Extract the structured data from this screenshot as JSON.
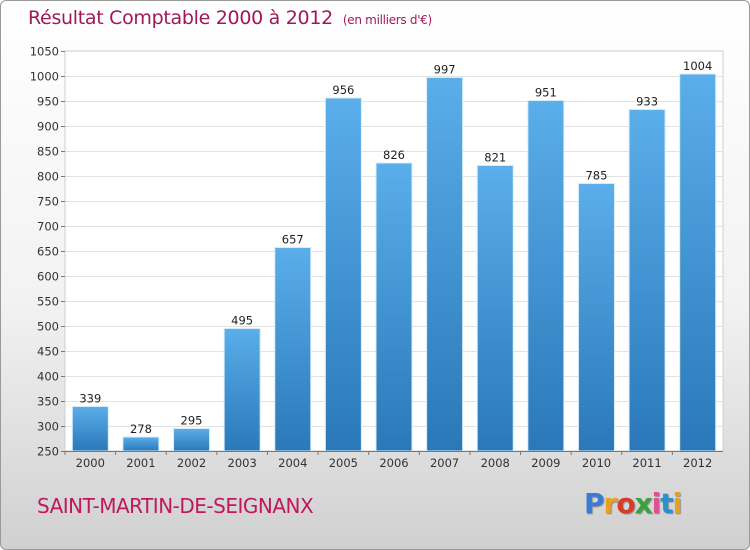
{
  "header": {
    "title": "Résultat Comptable 2000 à 2012",
    "unit": "(en milliers d'€)"
  },
  "footer": {
    "commune": "SAINT-MARTIN-DE-SEIGNANX",
    "logo_text": "Proxiti"
  },
  "colors": {
    "title": "#a0185a",
    "bar_top": "#5aaeea",
    "bar_bottom": "#2a78b8",
    "logo": [
      "#3a7bd5",
      "#e8a020",
      "#d83a2a",
      "#3aa040",
      "#e05090",
      "#2a90d0",
      "#e8a020"
    ]
  },
  "chart_data": {
    "type": "bar",
    "categories": [
      "2000",
      "2001",
      "2002",
      "2003",
      "2004",
      "2005",
      "2006",
      "2007",
      "2008",
      "2009",
      "2010",
      "2011",
      "2012"
    ],
    "values": [
      339,
      278,
      295,
      495,
      657,
      956,
      826,
      997,
      821,
      951,
      785,
      933,
      1004
    ],
    "title": "Résultat Comptable 2000 à 2012",
    "xlabel": "",
    "ylabel": "",
    "ylim": [
      250,
      1050
    ],
    "yticks": [
      250,
      300,
      350,
      400,
      450,
      500,
      550,
      600,
      650,
      700,
      750,
      800,
      850,
      900,
      950,
      1000,
      1050
    ],
    "grid": true,
    "legend": "none"
  }
}
